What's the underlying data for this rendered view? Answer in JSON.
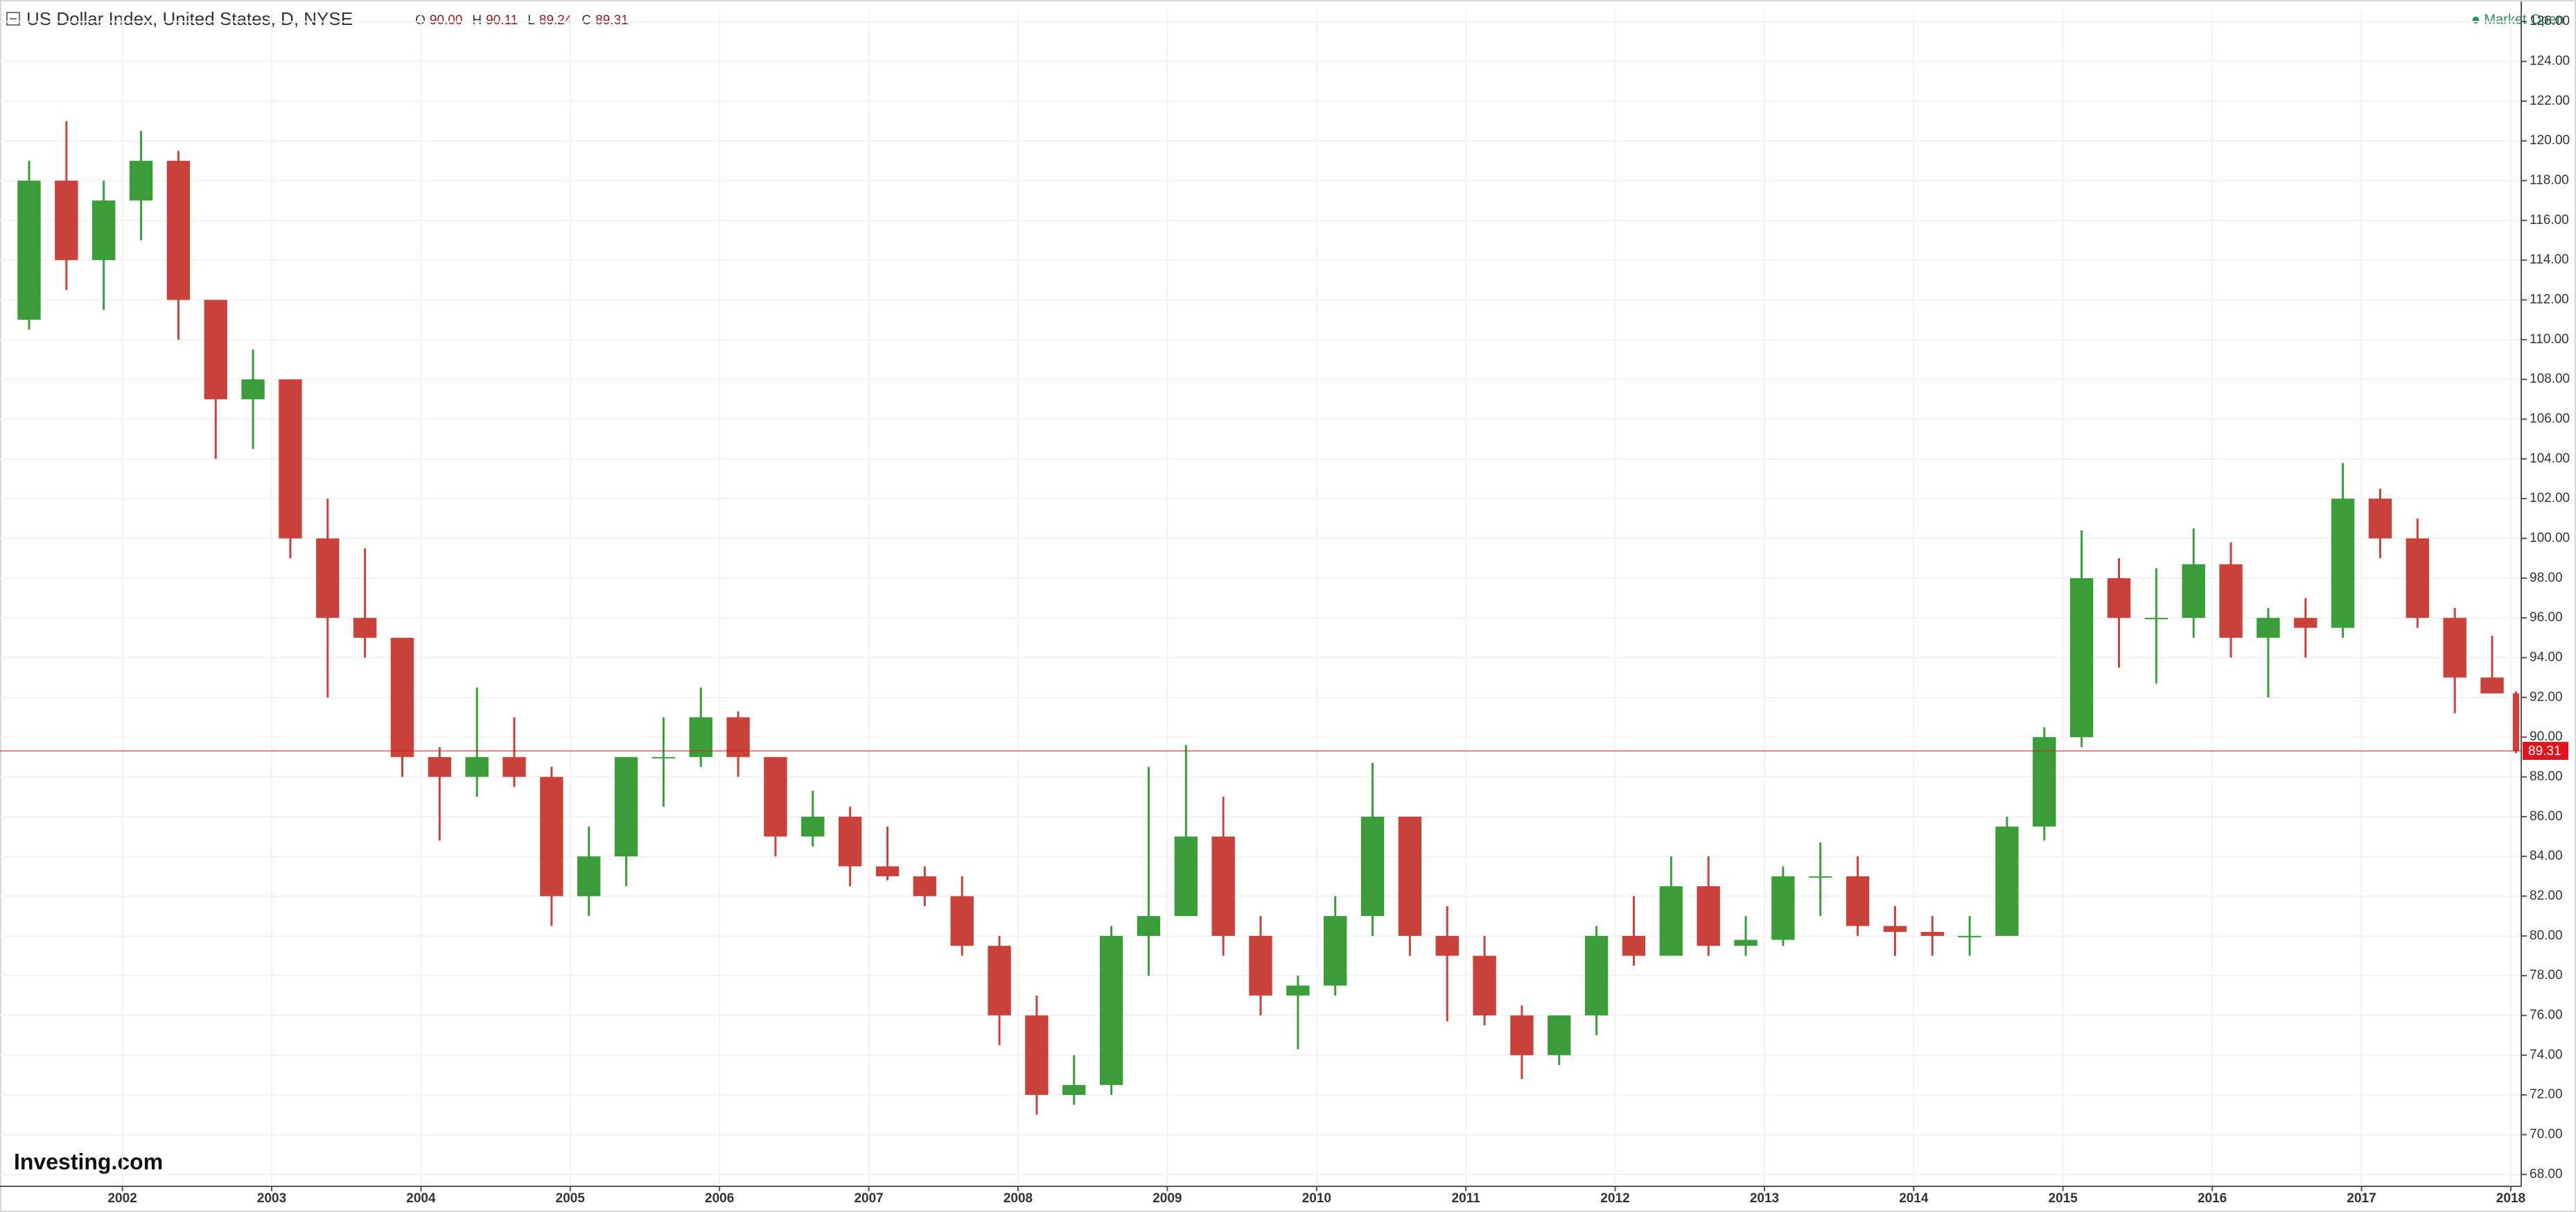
{
  "chart_data": {
    "type": "candlestick",
    "title": "US Dollar Index, United States, D, NYSE",
    "ohlc_labels": [
      "O",
      "H",
      "L",
      "C"
    ],
    "ohlc_values": [
      "90.00",
      "90.11",
      "89.24",
      "89.31"
    ],
    "status": "Market Open",
    "logo": "Investing.com",
    "last_price": {
      "value": 89.31,
      "label": "89.31"
    },
    "up_color": "#3a9d3a",
    "down_color": "#c8413a",
    "last_color": "#e0141e",
    "grid": true,
    "xlim": [
      2001.18,
      2018.07
    ],
    "xticks": [
      2002,
      2003,
      2004,
      2005,
      2006,
      2007,
      2008,
      2009,
      2010,
      2011,
      2012,
      2013,
      2014,
      2015,
      2016,
      2017,
      2018
    ],
    "ylim": [
      67.4,
      126.6
    ],
    "yticks": [
      {
        "value": 68,
        "label": "68.00"
      },
      {
        "value": 70,
        "label": "70.00"
      },
      {
        "value": 72,
        "label": "72.00"
      },
      {
        "value": 74,
        "label": "74.00"
      },
      {
        "value": 76,
        "label": "76.00"
      },
      {
        "value": 78,
        "label": "78.00"
      },
      {
        "value": 80,
        "label": "80.00"
      },
      {
        "value": 82,
        "label": "82.00"
      },
      {
        "value": 84,
        "label": "84.00"
      },
      {
        "value": 86,
        "label": "86.00"
      },
      {
        "value": 88,
        "label": "88.00"
      },
      {
        "value": 90,
        "label": "90.00"
      },
      {
        "value": 92,
        "label": "92.00"
      },
      {
        "value": 94,
        "label": "94.00"
      },
      {
        "value": 96,
        "label": "96.00"
      },
      {
        "value": 98,
        "label": "98.00"
      },
      {
        "value": 100,
        "label": "100.00"
      },
      {
        "value": 102,
        "label": "102.00"
      },
      {
        "value": 104,
        "label": "104.00"
      },
      {
        "value": 106,
        "label": "106.00"
      },
      {
        "value": 108,
        "label": "108.00"
      },
      {
        "value": 110,
        "label": "110.00"
      },
      {
        "value": 112,
        "label": "112.00"
      },
      {
        "value": 114,
        "label": "114.00"
      },
      {
        "value": 116,
        "label": "116.00"
      },
      {
        "value": 118,
        "label": "118.00"
      },
      {
        "value": 120,
        "label": "120.00"
      },
      {
        "value": 122,
        "label": "122.00"
      },
      {
        "value": 124,
        "label": "124.00"
      },
      {
        "value": 126,
        "label": "126.00"
      }
    ],
    "x": [
      2001.25,
      2001.5,
      2001.75,
      2002.0,
      2002.25,
      2002.5,
      2002.75,
      2003.0,
      2003.25,
      2003.5,
      2003.75,
      2004.0,
      2004.25,
      2004.5,
      2004.75,
      2005.0,
      2005.25,
      2005.5,
      2005.75,
      2006.0,
      2006.25,
      2006.5,
      2006.75,
      2007.0,
      2007.25,
      2007.5,
      2007.75,
      2008.0,
      2008.25,
      2008.5,
      2008.75,
      2009.0,
      2009.25,
      2009.5,
      2009.75,
      2010.0,
      2010.25,
      2010.5,
      2010.75,
      2011.0,
      2011.25,
      2011.5,
      2011.75,
      2012.0,
      2012.25,
      2012.5,
      2012.75,
      2013.0,
      2013.25,
      2013.5,
      2013.75,
      2014.0,
      2014.25,
      2014.5,
      2014.75,
      2015.0,
      2015.25,
      2015.5,
      2015.75,
      2016.0,
      2016.25,
      2016.5,
      2016.75,
      2017.0,
      2017.25,
      2017.5,
      2017.75,
      2018.0
    ],
    "open": [
      111,
      118,
      114,
      117,
      119,
      112,
      107,
      108,
      100,
      96,
      95,
      89,
      88,
      89,
      88,
      82,
      84,
      89,
      89,
      91,
      89,
      85,
      86,
      83.5,
      83,
      82,
      79.5,
      76,
      72,
      72.5,
      80,
      81,
      85,
      80,
      77,
      77.5,
      81,
      86,
      80,
      79,
      76,
      74,
      76,
      80,
      79,
      82.5,
      79.5,
      79.8,
      83,
      83,
      80.5,
      80.2,
      80,
      80,
      85.5,
      90,
      98,
      96,
      96,
      98.7,
      95,
      96,
      95.5,
      102,
      100,
      96,
      93,
      92.2
    ],
    "high": [
      119,
      121,
      118,
      120.5,
      119.5,
      112,
      109.5,
      108,
      102,
      99.5,
      95,
      89.5,
      92.5,
      91,
      88.5,
      85.5,
      89,
      91,
      92.5,
      91.3,
      89,
      87.3,
      86.5,
      85.5,
      83.5,
      83,
      80,
      77,
      74,
      80.5,
      88.5,
      89.6,
      87,
      81,
      78,
      82,
      88.7,
      86,
      81.5,
      80,
      76.5,
      76,
      80.5,
      82,
      84,
      84,
      81,
      83.5,
      84.7,
      84,
      81.5,
      81,
      81,
      86,
      90.5,
      100.4,
      99,
      98.5,
      100.5,
      99.8,
      96.5,
      97,
      103.8,
      102.5,
      101,
      96.5,
      95.1,
      92.3
    ],
    "low": [
      110.5,
      112.5,
      111.5,
      115,
      110,
      104,
      104.5,
      99,
      92,
      94,
      88,
      84.8,
      87,
      87.5,
      80.5,
      81,
      82.5,
      86.5,
      88.5,
      88,
      84,
      84.5,
      82.5,
      82.8,
      81.5,
      79,
      74.5,
      71,
      71.5,
      72,
      78,
      81,
      79,
      76,
      74.3,
      77,
      80,
      79,
      75.7,
      75.5,
      72.8,
      73.5,
      75,
      78.5,
      79,
      79,
      79,
      79.5,
      81,
      80,
      79,
      79,
      79,
      80,
      84.8,
      89.5,
      93.5,
      92.7,
      95,
      94,
      92,
      94,
      95,
      99,
      95.5,
      91.2,
      92.5,
      89.2
    ],
    "close": [
      118,
      114,
      117,
      119,
      112,
      107,
      108,
      100,
      96,
      95,
      89,
      88,
      89,
      88,
      82,
      84,
      89,
      89,
      91,
      89,
      85,
      86,
      83.5,
      83,
      82,
      79.5,
      76,
      72,
      72.5,
      80,
      81,
      85,
      80,
      77,
      77.5,
      81,
      86,
      80,
      79,
      76,
      74,
      76,
      80,
      79,
      82.5,
      79.5,
      79.8,
      83,
      83,
      80.5,
      80.2,
      80,
      80,
      85.5,
      90,
      98,
      96,
      96,
      98.7,
      95,
      96,
      95.5,
      102,
      100,
      96,
      93,
      92.2,
      89.3
    ]
  }
}
